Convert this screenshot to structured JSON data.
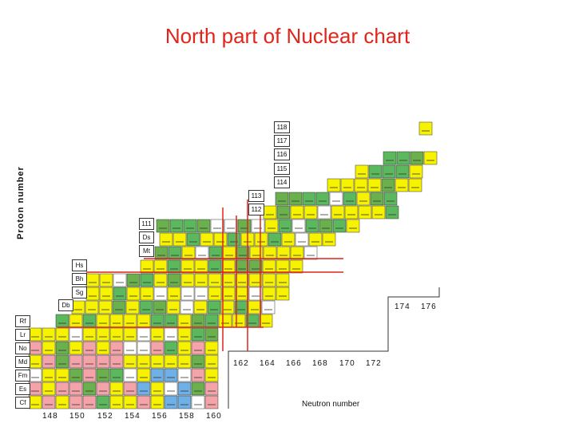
{
  "title": "North part of Nuclear chart",
  "axis": {
    "proton_title": "Proton number",
    "neutron_title": "Neutron number",
    "neutron_ticks_lower": [
      "148",
      "150",
      "152",
      "154",
      "156",
      "158",
      "160"
    ],
    "neutron_ticks_mid": [
      "162",
      "164",
      "166",
      "168",
      "170",
      "172"
    ],
    "neutron_ticks_upper": [
      "174",
      "176"
    ]
  },
  "elements": [
    "Cf",
    "Es",
    "Fm",
    "Md",
    "No",
    "Lr",
    "Rf",
    "Db",
    "Sg",
    "Bh",
    "Hs",
    "Mt",
    "Ds",
    "111"
  ],
  "proton_numbers": [
    "112",
    "113",
    "114",
    "115",
    "116",
    "117",
    "118"
  ],
  "colors": {
    "title": "#e0251b",
    "alpha": "#f7f200",
    "beta_plus": "#5cb85c",
    "spontaneous_fission": "#6ab04c",
    "beta_minus": "#6fb1e6",
    "stable_pink": "#f4a3a8",
    "magic_line": "#e0251b",
    "frame": "#333333"
  }
}
